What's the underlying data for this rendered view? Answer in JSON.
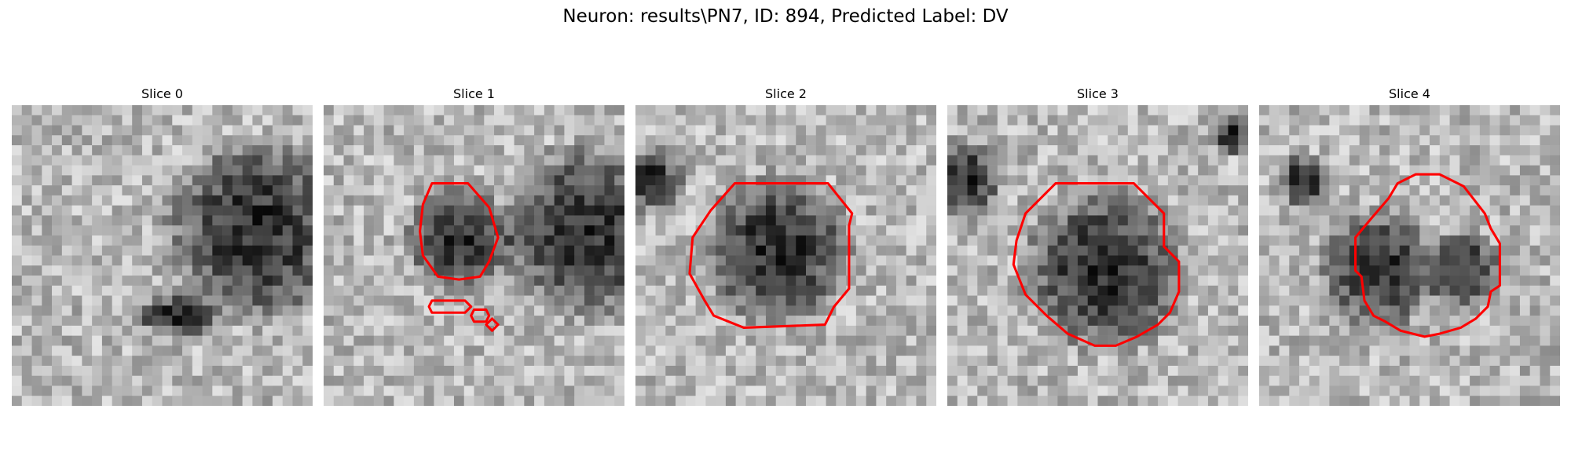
{
  "figure": {
    "title": "Neuron: results\\PN7, ID: 894, Predicted Label: DV"
  },
  "panels": [
    {
      "title": "Slice 0",
      "dark": [
        [
          0.82,
          0.42,
          0.34
        ],
        [
          0.55,
          0.7,
          0.16,
          0.08
        ]
      ],
      "contours": []
    },
    {
      "title": "Slice 1",
      "dark": [
        [
          0.88,
          0.42,
          0.32
        ],
        [
          0.45,
          0.45,
          0.2
        ]
      ],
      "contours": [
        [
          [
            0.36,
            0.26
          ],
          [
            0.48,
            0.26
          ],
          [
            0.55,
            0.34
          ],
          [
            0.58,
            0.44
          ],
          [
            0.55,
            0.52
          ],
          [
            0.52,
            0.57
          ],
          [
            0.45,
            0.58
          ],
          [
            0.38,
            0.57
          ],
          [
            0.33,
            0.5
          ],
          [
            0.32,
            0.42
          ],
          [
            0.33,
            0.33
          ]
        ],
        [
          [
            0.36,
            0.65
          ],
          [
            0.47,
            0.65
          ],
          [
            0.49,
            0.67
          ],
          [
            0.47,
            0.69
          ],
          [
            0.36,
            0.69
          ],
          [
            0.35,
            0.67
          ]
        ],
        [
          [
            0.5,
            0.68
          ],
          [
            0.54,
            0.68
          ],
          [
            0.55,
            0.7
          ],
          [
            0.54,
            0.72
          ],
          [
            0.5,
            0.72
          ],
          [
            0.49,
            0.7
          ]
        ],
        [
          [
            0.56,
            0.71
          ],
          [
            0.58,
            0.73
          ],
          [
            0.56,
            0.75
          ],
          [
            0.54,
            0.73
          ]
        ]
      ]
    },
    {
      "title": "Slice 2",
      "dark": [
        [
          0.47,
          0.48,
          0.28
        ],
        [
          0.05,
          0.25,
          0.12
        ]
      ],
      "contours": [
        [
          [
            0.33,
            0.26
          ],
          [
            0.64,
            0.26
          ],
          [
            0.72,
            0.36
          ],
          [
            0.71,
            0.4
          ],
          [
            0.71,
            0.61
          ],
          [
            0.66,
            0.67
          ],
          [
            0.63,
            0.73
          ],
          [
            0.36,
            0.74
          ],
          [
            0.26,
            0.7
          ],
          [
            0.23,
            0.65
          ],
          [
            0.18,
            0.56
          ],
          [
            0.19,
            0.44
          ],
          [
            0.25,
            0.35
          ]
        ]
      ]
    },
    {
      "title": "Slice 3",
      "dark": [
        [
          0.52,
          0.55,
          0.3
        ],
        [
          0.05,
          0.25,
          0.15
        ],
        [
          0.95,
          0.1,
          0.08
        ]
      ],
      "contours": [
        [
          [
            0.36,
            0.26
          ],
          [
            0.62,
            0.26
          ],
          [
            0.72,
            0.36
          ],
          [
            0.72,
            0.47
          ],
          [
            0.77,
            0.52
          ],
          [
            0.77,
            0.62
          ],
          [
            0.74,
            0.69
          ],
          [
            0.7,
            0.73
          ],
          [
            0.63,
            0.77
          ],
          [
            0.56,
            0.8
          ],
          [
            0.49,
            0.8
          ],
          [
            0.4,
            0.76
          ],
          [
            0.33,
            0.7
          ],
          [
            0.26,
            0.63
          ],
          [
            0.22,
            0.53
          ],
          [
            0.23,
            0.45
          ],
          [
            0.26,
            0.36
          ]
        ]
      ]
    },
    {
      "title": "Slice 4",
      "dark": [
        [
          0.4,
          0.55,
          0.22
        ],
        [
          0.15,
          0.25,
          0.1
        ],
        [
          0.68,
          0.55,
          0.14
        ]
      ],
      "contours": [
        [
          [
            0.46,
            0.26
          ],
          [
            0.52,
            0.23
          ],
          [
            0.6,
            0.23
          ],
          [
            0.68,
            0.27
          ],
          [
            0.75,
            0.36
          ],
          [
            0.77,
            0.41
          ],
          [
            0.8,
            0.46
          ],
          [
            0.8,
            0.6
          ],
          [
            0.77,
            0.62
          ],
          [
            0.76,
            0.67
          ],
          [
            0.72,
            0.71
          ],
          [
            0.67,
            0.74
          ],
          [
            0.6,
            0.76
          ],
          [
            0.55,
            0.77
          ],
          [
            0.47,
            0.75
          ],
          [
            0.42,
            0.72
          ],
          [
            0.38,
            0.7
          ],
          [
            0.35,
            0.65
          ],
          [
            0.34,
            0.57
          ],
          [
            0.32,
            0.55
          ],
          [
            0.32,
            0.44
          ],
          [
            0.37,
            0.38
          ],
          [
            0.43,
            0.31
          ]
        ]
      ]
    }
  ]
}
